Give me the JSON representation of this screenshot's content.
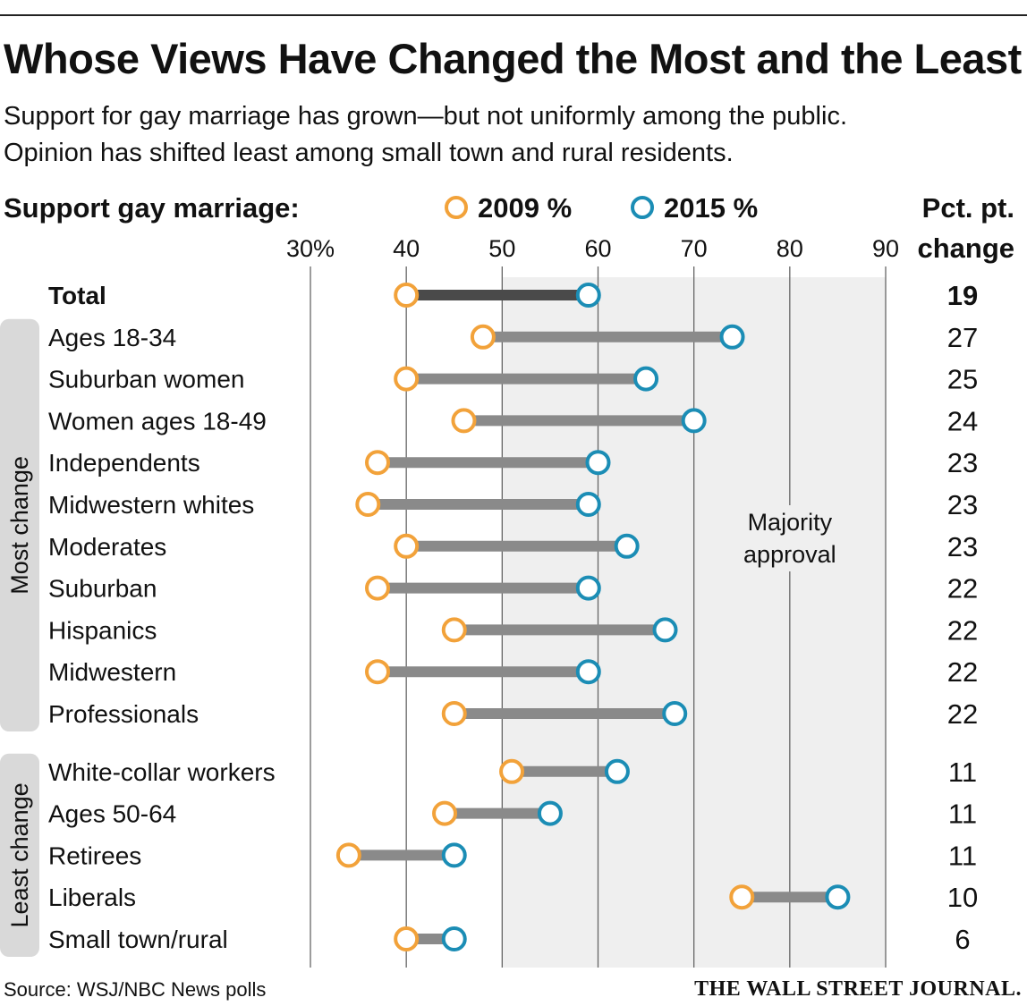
{
  "title": "Whose Views Have Changed the Most and the Least",
  "subtitle_lines": [
    "Support for gay marriage has grown—but not uniformly among the public.",
    "Opinion has shifted least among small town and rural residents."
  ],
  "source": "Source: WSJ/NBC News polls",
  "logo": "THE WALL STREET JOURNAL.",
  "chart_data": {
    "type": "dumbbell",
    "header_label": "Support gay marriage:",
    "legend": [
      {
        "label": "2009 %",
        "color": "#f2a23a"
      },
      {
        "label": "2015 %",
        "color": "#1b8db5"
      }
    ],
    "change_header": [
      "Pct. pt.",
      "change"
    ],
    "x_ticks": [
      "30%",
      "40",
      "50",
      "60",
      "70",
      "80",
      "90"
    ],
    "x_tick_values": [
      30,
      40,
      50,
      60,
      70,
      80,
      90
    ],
    "xlim": [
      30,
      90
    ],
    "majority_label": [
      "Majority",
      "approval"
    ],
    "majority_start": 50,
    "groups": [
      {
        "label": "Most change",
        "start": 1,
        "end": 10
      },
      {
        "label": "Least change",
        "start": 11,
        "end": 15
      }
    ],
    "rows": [
      {
        "label": "Total",
        "v2009": 40,
        "v2015": 59,
        "change": "19",
        "bold": true
      },
      {
        "label": "Ages 18-34",
        "v2009": 48,
        "v2015": 74,
        "change": "27"
      },
      {
        "label": "Suburban women",
        "v2009": 40,
        "v2015": 65,
        "change": "25"
      },
      {
        "label": "Women ages 18-49",
        "v2009": 46,
        "v2015": 70,
        "change": "24"
      },
      {
        "label": "Independents",
        "v2009": 37,
        "v2015": 60,
        "change": "23"
      },
      {
        "label": "Midwestern whites",
        "v2009": 36,
        "v2015": 59,
        "change": "23"
      },
      {
        "label": "Moderates",
        "v2009": 40,
        "v2015": 63,
        "change": "23"
      },
      {
        "label": "Suburban",
        "v2009": 37,
        "v2015": 59,
        "change": "22"
      },
      {
        "label": "Hispanics",
        "v2009": 45,
        "v2015": 67,
        "change": "22"
      },
      {
        "label": "Midwestern",
        "v2009": 37,
        "v2015": 59,
        "change": "22"
      },
      {
        "label": "Professionals",
        "v2009": 45,
        "v2015": 68,
        "change": "22"
      },
      {
        "label": "White-collar workers",
        "v2009": 51,
        "v2015": 62,
        "change": "11"
      },
      {
        "label": "Ages 50-64",
        "v2009": 44,
        "v2015": 55,
        "change": "11"
      },
      {
        "label": "Retirees",
        "v2009": 34,
        "v2015": 45,
        "change": "11"
      },
      {
        "label": "Liberals",
        "v2009": 75,
        "v2015": 85,
        "change": "10"
      },
      {
        "label": "Small town/rural",
        "v2009": 40,
        "v2015": 45,
        "change": "6"
      }
    ]
  }
}
